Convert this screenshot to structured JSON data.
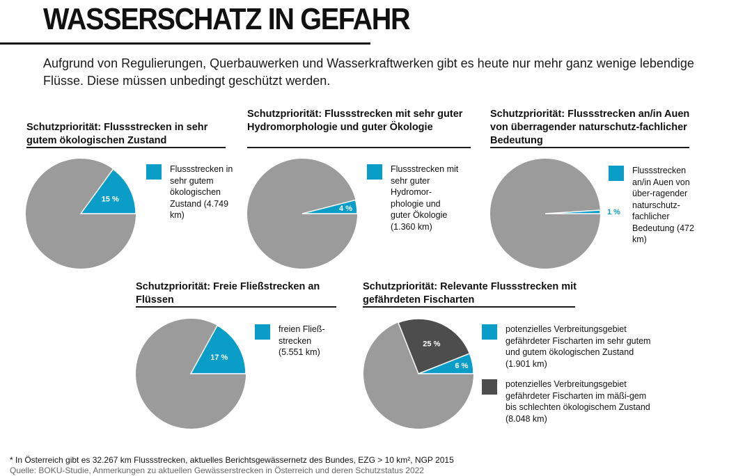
{
  "header": {
    "title": "WASSERSCHATZ IN GEFAHR",
    "intro": "Aufgrund von Regulierungen, Querbauwerken und Wasserkraftwerken gibt es heute nur mehr ganz wenige lebendige Flüsse. Diese müssen unbedingt geschützt werden."
  },
  "colors": {
    "accent": "#0a9dc7",
    "dark": "#4d4d4d",
    "base": "#9b9b9b"
  },
  "chart_data": [
    {
      "type": "pie",
      "title": "Schutzpriorität: Flussstrecken in sehr gutem ökologischen Zustand",
      "slices": [
        {
          "label": "15 %",
          "value": 15,
          "color": "#0a9dc7"
        }
      ],
      "legend": [
        {
          "text": "Flussstrecken in sehr gutem ökologischen Zustand (4.749 km)",
          "color": "#0a9dc7"
        }
      ]
    },
    {
      "type": "pie",
      "title": "Schutzpriorität: Flussstrecken mit sehr guter Hydromorphologie und guter Ökologie",
      "slices": [
        {
          "label": "4 %",
          "value": 4,
          "color": "#0a9dc7"
        }
      ],
      "legend": [
        {
          "text": "Flussstrecken mit sehr guter Hydromor-phologie und guter Ökologie (1.360 km)",
          "color": "#0a9dc7"
        }
      ]
    },
    {
      "type": "pie",
      "title": "Schutzpriorität: Flussstrecken an/in Auen von überragender naturschutz-fachlicher Bedeutung",
      "slices": [
        {
          "label": "1 %",
          "value": 1,
          "color": "#0a9dc7"
        }
      ],
      "legend": [
        {
          "text": "Flussstrecken an/in Auen von über-ragender naturschutz-fachlicher Bedeutung (472 km)",
          "color": "#0a9dc7"
        }
      ]
    },
    {
      "type": "pie",
      "title": "Schutzpriorität: Freie Fließstrecken an Flüssen",
      "slices": [
        {
          "label": "17 %",
          "value": 17,
          "color": "#0a9dc7"
        }
      ],
      "legend": [
        {
          "text": "freien Fließ-strecken (5.551 km)",
          "color": "#0a9dc7"
        }
      ]
    },
    {
      "type": "pie",
      "title": "Schutzpriorität: Relevante Flussstrecken mit gefährdeten Fischarten",
      "slices": [
        {
          "label": "6 %",
          "value": 6,
          "color": "#0a9dc7"
        },
        {
          "label": "25 %",
          "value": 25,
          "color": "#4d4d4d"
        }
      ],
      "legend": [
        {
          "text": "potenzielles Verbreitungsgebiet gefährdeter Fischarten im sehr gutem und gutem ökologischen Zustand (1.901 km)",
          "color": "#0a9dc7"
        },
        {
          "text": "potenzielles Verbreitungsgebiet gefährdeter Fischarten im mäßi-gem bis schlechten ökologischem Zustand (8.048 km)",
          "color": "#4d4d4d"
        }
      ]
    }
  ],
  "footer": {
    "footnote": "* In Österreich gibt es 32.267 km Flussstrecken, aktuelles Berichtsgewässernetz des Bundes, EZG > 10 km², NGP 2015",
    "source": "Quelle: BOKU-Studie, Anmerkungen zu aktuellen Gewässerstrecken in Österreich und deren Schutzstatus 2022"
  }
}
